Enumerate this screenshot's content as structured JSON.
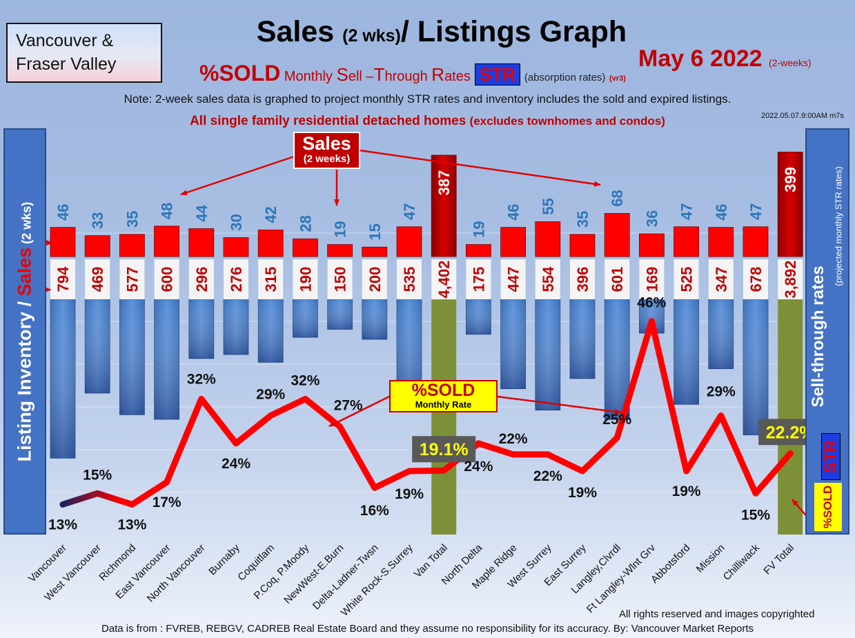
{
  "header": {
    "region_line1": "Vancouver &",
    "region_line2": "Fraser Valley",
    "title_main": "Sales ",
    "title_small": "(2 wks)",
    "title_tail": "/ Listings Graph",
    "date": "May 6  2022",
    "date_small": "(2-weeks)",
    "subtitle_sold": "%SOLD",
    "subtitle_rest_1": " Monthly ",
    "subtitle_S": "S",
    "subtitle_rest_2": "ell –",
    "subtitle_T": "T",
    "subtitle_rest_3": "hrough ",
    "subtitle_R": "R",
    "subtitle_rest_4": "ates",
    "str_badge": "STR",
    "absorption": "(absorption rates)",
    "version": "(vr3)",
    "note": "Note: 2-week sales data is graphed to project monthly STR rates and inventory includes the sold and expired listings.",
    "timestamp": "2022.05.07.9:00AM m7s",
    "scope": "All single family residential detached homes ",
    "scope_small": "(excludes townhomes and condos)"
  },
  "side_labels": {
    "left_main": "Listing Inventory / ",
    "left_sales": "Sales",
    "left_small": " (2  wks)",
    "right_main": "Sell-through rates",
    "right_sub": "(projected monthly STR rates)",
    "str_badge": "STR",
    "sold_badge": "%SOLD"
  },
  "callouts": {
    "sales_title": "Sales",
    "sales_sub": "(2 weeks)",
    "sold_title": "%SOLD",
    "sold_sub": "Monthly Rate"
  },
  "footer": {
    "rights": "All rights reserved and  images copyrighted",
    "source": "Data is from : FVREB, REBGV, CADREB Real Estate Board and they assume no responsibility for its accuracy. By: Vancouver Market Reports"
  },
  "chart_data": {
    "type": "bar",
    "categories": [
      "Vancouver",
      "West Vancouver",
      "Richmond",
      "East Vancouver",
      "North Vancouver",
      "Burnaby",
      "Coquitlam",
      "P.Coq, P.Moody",
      "NewWest-E.Burn",
      "Delta-Ladner-Twsn",
      "White Rock-S.Surrey",
      "Van Total",
      "North Delta",
      "Maple Ridge",
      "West Surrey",
      "East Surrey",
      "Langley,Clvrdl",
      "Ft Langley-Wlnt Grv",
      "Abbotsford",
      "Mission",
      "Chilliwack",
      "FV Total"
    ],
    "sales": [
      46,
      33,
      35,
      48,
      44,
      30,
      42,
      28,
      19,
      15,
      47,
      387,
      19,
      46,
      55,
      35,
      68,
      36,
      47,
      46,
      47,
      399
    ],
    "inventory": [
      794,
      469,
      577,
      600,
      296,
      276,
      315,
      190,
      150,
      200,
      535,
      4402,
      175,
      447,
      554,
      396,
      601,
      169,
      525,
      347,
      678,
      3892
    ],
    "inventory_labels": [
      "794",
      "469",
      "577",
      "600",
      "296",
      "276",
      "315",
      "190",
      "150",
      "200",
      "535",
      "4,402",
      "175",
      "447",
      "554",
      "396",
      "601",
      "169",
      "525",
      "347",
      "678",
      "3,892"
    ],
    "str_percent": [
      13,
      15,
      13,
      17,
      32,
      24,
      29,
      32,
      27,
      16,
      19,
      19.1,
      24,
      22,
      22,
      19,
      25,
      46,
      19,
      29,
      15,
      22.2
    ],
    "str_labels": [
      "13%",
      "15%",
      "13%",
      "17%",
      "32%",
      "24%",
      "29%",
      "32%",
      "27%",
      "16%",
      "19%",
      "19.1%",
      "24%",
      "22%",
      "22%",
      "19%",
      "25%",
      "46%",
      "19%",
      "29%",
      "15%",
      "22.2%"
    ],
    "total_categories": [
      "Van Total",
      "FV Total"
    ],
    "colors": {
      "sales": "#ff0000",
      "sales_total": "#b00000",
      "inventory": "#4f86d0",
      "total_column": "#7c9137",
      "sales_text": "#2e75b6",
      "inventory_text": "#c00000",
      "line": "#ff0000",
      "line_dark": "#1f1f5c"
    }
  }
}
